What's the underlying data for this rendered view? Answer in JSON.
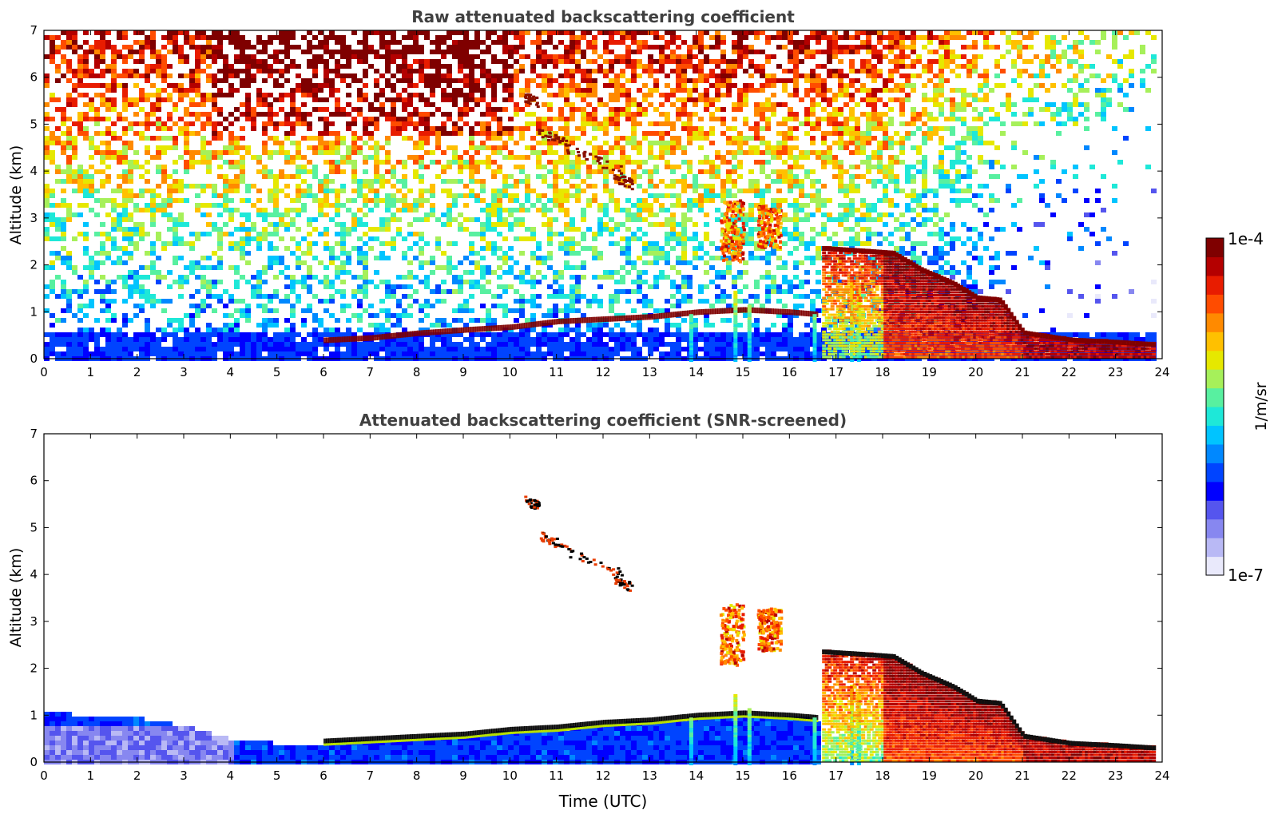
{
  "chart_data": [
    {
      "type": "heatmap",
      "title": "Raw attenuated backscattering coefficient",
      "ylabel": "Altitude (km)",
      "xlabel": "",
      "xlim": [
        0,
        24
      ],
      "ylim": [
        0,
        7
      ],
      "x_ticks": [
        "0",
        "1",
        "2",
        "3",
        "4",
        "5",
        "6",
        "7",
        "8",
        "9",
        "10",
        "11",
        "12",
        "13",
        "14",
        "15",
        "16",
        "17",
        "18",
        "19",
        "20",
        "21",
        "22",
        "23",
        "24"
      ],
      "y_ticks": [
        "0",
        "1",
        "2",
        "3",
        "4",
        "5",
        "6",
        "7"
      ],
      "data_end_hour": 23.8,
      "boundary_layer_top_km": [
        [
          6.0,
          0.4
        ],
        [
          7.0,
          0.45
        ],
        [
          8.0,
          0.55
        ],
        [
          9.0,
          0.62
        ],
        [
          10.0,
          0.68
        ],
        [
          11.0,
          0.8
        ],
        [
          12.0,
          0.85
        ],
        [
          13.0,
          0.9
        ],
        [
          14.0,
          1.0
        ],
        [
          15.0,
          1.05
        ],
        [
          16.0,
          1.0
        ],
        [
          16.6,
          0.95
        ]
      ],
      "cloud_base_km": [
        [
          16.7,
          2.35
        ],
        [
          17.5,
          2.3
        ],
        [
          18.2,
          2.25
        ],
        [
          18.8,
          1.9
        ],
        [
          19.5,
          1.6
        ],
        [
          20.0,
          1.3
        ],
        [
          20.5,
          1.25
        ],
        [
          21.0,
          0.55
        ],
        [
          22.0,
          0.4
        ],
        [
          23.0,
          0.35
        ],
        [
          23.8,
          0.3
        ]
      ],
      "elevated_layers": [
        {
          "x": [
            10.1,
            12.6
          ],
          "y": [
            3.8,
            5.7
          ],
          "note": "thin layers"
        },
        {
          "x": [
            14.5,
            15.0
          ],
          "y": [
            2.3,
            3.4
          ]
        },
        {
          "x": [
            15.3,
            15.8
          ],
          "y": [
            2.5,
            3.3
          ]
        }
      ],
      "noise_background": "high altitude noise; warm (red/orange) 4-8 UTC and 5-7 km, cooler toward 18-24 UTC"
    },
    {
      "type": "heatmap",
      "title": "Attenuated backscattering coefficient (SNR-screened)",
      "ylabel": "Altitude (km)",
      "xlabel": "Time (UTC)",
      "xlim": [
        0,
        24
      ],
      "ylim": [
        0,
        7
      ],
      "x_ticks": [
        "0",
        "1",
        "2",
        "3",
        "4",
        "5",
        "6",
        "7",
        "8",
        "9",
        "10",
        "11",
        "12",
        "13",
        "14",
        "15",
        "16",
        "17",
        "18",
        "19",
        "20",
        "21",
        "22",
        "23",
        "24"
      ],
      "y_ticks": [
        "0",
        "1",
        "2",
        "3",
        "4",
        "5",
        "6",
        "7"
      ],
      "data_end_hour": 23.8,
      "screened_low_layer_top_km": [
        [
          0,
          1.1
        ],
        [
          1,
          1.05
        ],
        [
          2,
          1.0
        ],
        [
          3,
          0.8
        ],
        [
          4,
          0.55
        ],
        [
          5,
          0.45
        ],
        [
          6,
          0.45
        ],
        [
          7,
          0.5
        ],
        [
          8,
          0.55
        ],
        [
          9,
          0.6
        ],
        [
          10,
          0.7
        ],
        [
          11,
          0.75
        ],
        [
          12,
          0.85
        ],
        [
          13,
          0.9
        ],
        [
          14,
          1.0
        ],
        [
          15,
          1.05
        ],
        [
          16,
          1.0
        ],
        [
          16.6,
          0.95
        ]
      ],
      "cloud_base_km": [
        [
          16.7,
          2.35
        ],
        [
          17.5,
          2.3
        ],
        [
          18.2,
          2.25
        ],
        [
          18.8,
          1.9
        ],
        [
          19.5,
          1.6
        ],
        [
          20.0,
          1.3
        ],
        [
          20.5,
          1.25
        ],
        [
          21.0,
          0.55
        ],
        [
          22.0,
          0.4
        ],
        [
          23.0,
          0.35
        ],
        [
          23.8,
          0.3
        ]
      ]
    }
  ],
  "colorbar": {
    "label": "1/m/sr",
    "max_label": "1e-4",
    "min_label": "1e-7",
    "colors": [
      "#e9e9fb",
      "#b9b9f5",
      "#8787f0",
      "#5555ee",
      "#0000ff",
      "#0044ff",
      "#0088ff",
      "#00c4ff",
      "#1ee8d8",
      "#58f0a0",
      "#a6f05a",
      "#e6e800",
      "#ffc000",
      "#ff8a00",
      "#ff4c00",
      "#e81c00",
      "#b40000",
      "#7f0000"
    ]
  }
}
